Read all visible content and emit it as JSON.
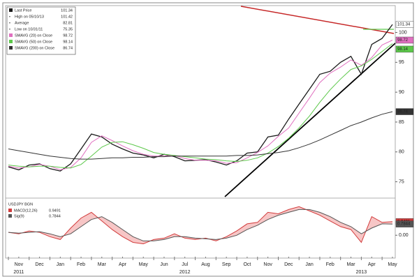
{
  "chart_data": [
    {
      "type": "line",
      "categories": [
        "Nov",
        null,
        "Dec",
        null,
        "Jan",
        null,
        "Feb",
        null,
        "Mar",
        null,
        "Apr",
        null,
        "May",
        null,
        "Jun",
        null,
        "Jul",
        null,
        "Aug",
        null,
        "Sep",
        null,
        "Oct",
        null,
        "Nov",
        null,
        "Dec",
        null,
        "Jan",
        null,
        "Feb",
        null,
        "Mar",
        null,
        "Apr",
        null,
        "May",
        null
      ],
      "years": [
        "2011",
        "2012",
        "2013"
      ],
      "series": [
        {
          "name": "Last Price",
          "color": "#1a1a1a",
          "values": [
            77.5,
            77.0,
            77.8,
            78.0,
            77.2,
            76.8,
            78.0,
            80.5,
            83.0,
            82.5,
            81.3,
            80.5,
            79.8,
            79.5,
            79.0,
            79.6,
            79.2,
            78.5,
            78.6,
            78.7,
            78.3,
            77.8,
            78.5,
            79.8,
            80.0,
            82.5,
            82.8,
            85.5,
            88.0,
            90.5,
            93.0,
            93.5,
            95.0,
            96.0,
            93.0,
            98.0,
            99.0,
            101.34
          ]
        },
        {
          "name": "SMAVG (20) on Close",
          "color": "#e070c0",
          "values": [
            77.6,
            77.3,
            77.5,
            77.9,
            77.6,
            77.0,
            77.4,
            79.0,
            81.6,
            82.7,
            81.9,
            81.0,
            80.2,
            79.6,
            79.3,
            79.3,
            79.4,
            78.9,
            78.6,
            78.6,
            78.5,
            78.1,
            78.2,
            79.0,
            79.9,
            81.0,
            82.6,
            84.0,
            86.5,
            89.0,
            91.6,
            93.2,
            94.2,
            95.4,
            94.5,
            95.8,
            97.9,
            98.72
          ]
        },
        {
          "name": "SMAVG (50) on Close",
          "color": "#5cc84a",
          "values": [
            77.8,
            77.6,
            77.5,
            77.6,
            77.6,
            77.4,
            77.3,
            77.9,
            79.3,
            80.8,
            81.6,
            81.7,
            81.2,
            80.6,
            79.9,
            79.6,
            79.4,
            79.2,
            79.0,
            78.8,
            78.7,
            78.5,
            78.4,
            78.6,
            79.0,
            79.8,
            80.9,
            82.3,
            84.0,
            86.0,
            88.3,
            90.4,
            92.2,
            93.8,
            94.4,
            95.5,
            96.8,
            98.14
          ]
        },
        {
          "name": "SMAVG (200) on Close",
          "color": "#333333",
          "values": [
            80.5,
            80.2,
            79.9,
            79.6,
            79.3,
            79.1,
            78.9,
            78.8,
            78.8,
            78.9,
            79.0,
            79.0,
            79.1,
            79.1,
            79.2,
            79.2,
            79.3,
            79.3,
            79.3,
            79.3,
            79.3,
            79.3,
            79.4,
            79.4,
            79.5,
            79.7,
            79.9,
            80.2,
            80.7,
            81.3,
            82.0,
            82.8,
            83.6,
            84.4,
            85.0,
            85.7,
            86.3,
            86.74
          ]
        }
      ],
      "legend_stats": [
        {
          "label": "High on 05/10/13",
          "value": 101.42
        },
        {
          "label": "Average",
          "value": 82.81
        },
        {
          "label": "Low on 10/31/11",
          "value": 75.35
        }
      ],
      "ylim": [
        72.5,
        104.5
      ],
      "yticks": [
        75,
        80,
        85,
        90,
        95,
        100
      ]
    },
    {
      "type": "line",
      "title": "USDJPY BGN",
      "series": [
        {
          "name": "MACD(12,26)",
          "color": "#d23c3c",
          "values": [
            0.2,
            0.1,
            0.3,
            0.2,
            -0.1,
            -0.3,
            0.5,
            1.2,
            1.6,
            1.0,
            0.4,
            -0.1,
            -0.5,
            -0.6,
            -0.3,
            -0.2,
            0.1,
            -0.2,
            -0.3,
            -0.2,
            -0.4,
            -0.1,
            0.3,
            0.8,
            0.9,
            1.6,
            1.5,
            1.8,
            2.0,
            1.7,
            1.4,
            1.0,
            0.6,
            0.4,
            -0.5,
            1.3,
            0.9,
            0.9491
          ]
        },
        {
          "name": "Sig(9)",
          "color": "#555555",
          "values": [
            0.2,
            0.15,
            0.2,
            0.25,
            0.1,
            -0.1,
            0.1,
            0.6,
            1.1,
            1.3,
            0.9,
            0.4,
            -0.1,
            -0.4,
            -0.4,
            -0.3,
            -0.1,
            -0.1,
            -0.2,
            -0.25,
            -0.3,
            -0.2,
            0.0,
            0.4,
            0.7,
            1.1,
            1.4,
            1.6,
            1.8,
            1.8,
            1.6,
            1.3,
            0.9,
            0.6,
            0.1,
            0.5,
            0.8,
            0.7844
          ]
        }
      ],
      "ylim": [
        -1.5,
        2.5
      ],
      "yticks": [
        {
          "value": 0,
          "label": "0.00"
        }
      ]
    }
  ]
}
